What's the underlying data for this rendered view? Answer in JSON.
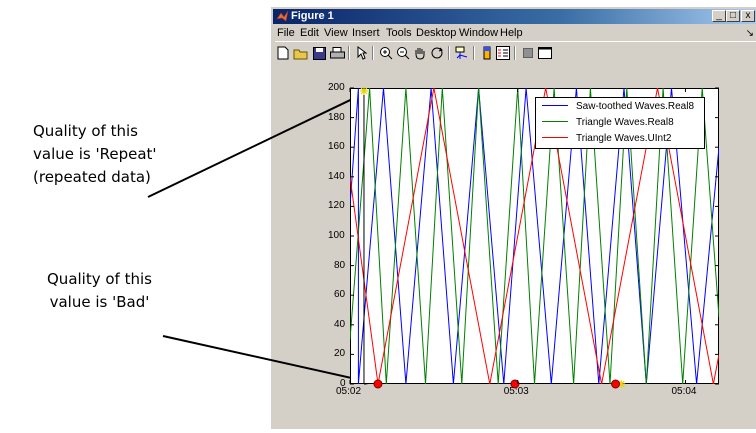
{
  "annotations": {
    "repeat": [
      "Quality of this",
      "value is 'Repeat'",
      "(repeated data)"
    ],
    "bad": [
      "Quality of this",
      "value is 'Bad'"
    ]
  },
  "window": {
    "title": "Figure 1",
    "controls": {
      "minimize": "_",
      "maximize": "□",
      "close": "x"
    },
    "menu": [
      "File",
      "Edit",
      "View",
      "Insert",
      "Tools",
      "Desktop",
      "Window",
      "Help"
    ],
    "dock_arrow": "↘",
    "toolbar_icons": [
      "new-figure-icon",
      "open-file-icon",
      "save-icon",
      "print-icon",
      "edit-plot-arrow-icon",
      "zoom-in-icon",
      "zoom-out-icon",
      "pan-hand-icon",
      "rotate-3d-icon",
      "data-cursor-icon",
      "insert-colorbar-icon",
      "insert-legend-icon",
      "hide-plot-tools-icon",
      "show-plot-tools-icon"
    ]
  },
  "chart_data": {
    "type": "line",
    "x_unit": "time (hh:mm)",
    "xlim": [
      "05:02",
      "05:04:12"
    ],
    "xticks": [
      "05:02",
      "05:03",
      "05:04"
    ],
    "ylim": [
      0,
      200
    ],
    "yticks": [
      0,
      20,
      40,
      60,
      80,
      100,
      120,
      140,
      160,
      180,
      200
    ],
    "grid": false,
    "legend_position": "top-right",
    "colors": {
      "saw": "#0000ff",
      "triReal": "#008000",
      "triUint": "#ff0000",
      "repeatMarker": "#e6d300",
      "badMarker": "#ff0000"
    },
    "series": [
      {
        "name": "Saw-toothed Waves.Real8",
        "color": "#0000ff",
        "x": [
          "05:02:00",
          "05:02:03",
          "05:02:03",
          "05:02:12",
          "05:02:20",
          "05:02:29",
          "05:02:37",
          "05:02:46",
          "05:02:55",
          "05:03:03",
          "05:03:12",
          "05:03:21",
          "05:03:29",
          "05:03:38",
          "05:03:46",
          "05:03:55",
          "05:04:04",
          "05:04:12"
        ],
        "y": [
          120,
          200,
          0,
          200,
          0,
          200,
          0,
          200,
          0,
          200,
          0,
          200,
          0,
          200,
          0,
          200,
          0,
          160
        ]
      },
      {
        "name": "Triangle Waves.Real8",
        "color": "#008000",
        "x": [
          "05:02:00",
          "05:02:07",
          "05:02:13",
          "05:02:20",
          "05:02:27",
          "05:02:33",
          "05:02:40",
          "05:02:46",
          "05:02:53",
          "05:03:00",
          "05:03:06",
          "05:03:13",
          "05:03:20",
          "05:03:26",
          "05:03:33",
          "05:03:39",
          "05:03:46",
          "05:03:52",
          "05:03:59",
          "05:04:06",
          "05:04:12"
        ],
        "y": [
          30,
          200,
          0,
          200,
          0,
          200,
          0,
          200,
          0,
          200,
          0,
          200,
          0,
          200,
          0,
          200,
          0,
          200,
          0,
          200,
          45
        ]
      },
      {
        "name": "Triangle Waves.UInt2",
        "color": "#ff0000",
        "x": [
          "05:02:00",
          "05:02:10",
          "05:02:30",
          "05:02:50",
          "05:03:10",
          "05:03:30",
          "05:03:50",
          "05:04:10",
          "05:04:12"
        ],
        "y": [
          140,
          0,
          200,
          0,
          200,
          0,
          200,
          0,
          20
        ]
      }
    ],
    "markers": [
      {
        "type": "repeat",
        "x": "05:02:05",
        "y": 198,
        "color": "#e6d300"
      },
      {
        "type": "repeat",
        "x": "05:03:37",
        "y": 0,
        "color": "#e6d300"
      },
      {
        "type": "bad",
        "x": "05:02:10",
        "y": 0,
        "color": "#ff0000"
      },
      {
        "type": "bad",
        "x": "05:02:59",
        "y": 0,
        "color": "#ff0000"
      },
      {
        "type": "bad",
        "x": "05:03:35",
        "y": 0,
        "color": "#ff0000"
      }
    ]
  }
}
